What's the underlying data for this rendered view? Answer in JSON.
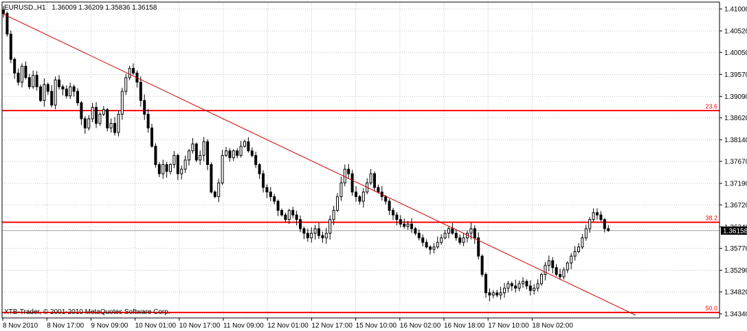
{
  "header": {
    "symbol": "EURUSD.,H1",
    "ohlc": "1.36009 1.36209 1.35836 1.36158"
  },
  "copyright": "XTB-Trader, © 2001-2010 MetaQuotes Software Corp.",
  "colors": {
    "background": "#ffffff",
    "grid": "#c0c0c0",
    "axis": "#000000",
    "candle": "#000000",
    "fib_line": "#ff0000",
    "trend_line": "#cc0000",
    "price_label_bg": "#000000",
    "price_label_text": "#ffffff"
  },
  "chart_data": {
    "type": "candlestick",
    "ylim": [
      1.3425,
      1.4115
    ],
    "y_ticks": [
      "1.41000",
      "1.40520",
      "1.40050",
      "1.39570",
      "1.39090",
      "1.38620",
      "1.38140",
      "1.37670",
      "1.37190",
      "1.36720",
      "1.36240",
      "1.35770",
      "1.35290",
      "1.34820",
      "1.34340"
    ],
    "current_price": "1.36158",
    "x_ticks": [
      "8 Nov 2010",
      "8 Nov 17:00",
      "9 Nov 09:00",
      "10 Nov 01:00",
      "10 Nov 17:00",
      "11 Nov 09:00",
      "12 Nov 01:00",
      "12 Nov 17:00",
      "15 Nov 10:00",
      "16 Nov 02:00",
      "16 Nov 18:00",
      "17 Nov 10:00",
      "18 Nov 02:00"
    ],
    "fib_levels": [
      {
        "label": "23.6",
        "price": 1.3878
      },
      {
        "label": "38.2",
        "price": 1.3634
      },
      {
        "label": "50.0",
        "price": 1.3437
      }
    ],
    "trend_line": {
      "from": [
        "8 Nov 2010",
        1.409
      ],
      "to": [
        "18 Nov 18:00",
        1.3431
      ]
    },
    "close_series": [
      1.409,
      1.4045,
      1.399,
      1.396,
      1.394,
      1.3975,
      1.395,
      1.393,
      1.3955,
      1.393,
      1.39,
      1.3935,
      1.392,
      1.389,
      1.3945,
      1.393,
      1.3925,
      1.391,
      1.393,
      1.392,
      1.3895,
      1.386,
      1.384,
      1.386,
      1.3885,
      1.385,
      1.387,
      1.388,
      1.384,
      1.385,
      1.383,
      1.387,
      1.392,
      1.395,
      1.397,
      1.396,
      1.394,
      1.39,
      1.387,
      1.384,
      1.38,
      1.376,
      1.374,
      1.376,
      1.3745,
      1.376,
      1.378,
      1.374,
      1.375,
      1.377,
      1.379,
      1.3805,
      1.377,
      1.378,
      1.381,
      1.376,
      1.37,
      1.369,
      1.372,
      1.378,
      1.379,
      1.3775,
      1.379,
      1.378,
      1.38,
      1.381,
      1.379,
      1.378,
      1.376,
      1.374,
      1.371,
      1.37,
      1.369,
      1.368,
      1.366,
      1.365,
      1.364,
      1.366,
      1.365,
      1.364,
      1.362,
      1.361,
      1.36,
      1.361,
      1.362,
      1.3605,
      1.36,
      1.361,
      1.364,
      1.366,
      1.369,
      1.372,
      1.375,
      1.374,
      1.37,
      1.369,
      1.368,
      1.37,
      1.372,
      1.374,
      1.371,
      1.37,
      1.369,
      1.368,
      1.366,
      1.365,
      1.364,
      1.363,
      1.3625,
      1.363,
      1.362,
      1.361,
      1.36,
      1.359,
      1.358,
      1.3575,
      1.358,
      1.359,
      1.36,
      1.361,
      1.362,
      1.361,
      1.36,
      1.359,
      1.36,
      1.361,
      1.362,
      1.36,
      1.356,
      1.352,
      1.348,
      1.3475,
      1.348,
      1.3475,
      1.348,
      1.349,
      1.35,
      1.3495,
      1.349,
      1.35,
      1.3505,
      1.3495,
      1.3485,
      1.349,
      1.35,
      1.352,
      1.354,
      1.355,
      1.3535,
      1.352,
      1.3515,
      1.353,
      1.3545,
      1.356,
      1.357,
      1.358,
      1.36,
      1.362,
      1.364,
      1.3655,
      1.365,
      1.364,
      1.362,
      1.3616
    ]
  }
}
